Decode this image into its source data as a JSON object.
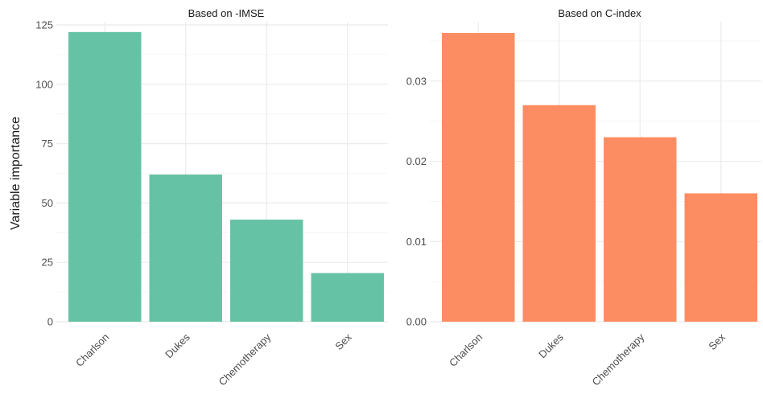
{
  "chart_data": [
    {
      "type": "bar",
      "title": "Based on -IMSE",
      "ylabel": "Variable importance",
      "xlabel": "",
      "categories": [
        "Charlson",
        "Dukes",
        "Chemotherapy",
        "Sex"
      ],
      "values": [
        122,
        62,
        43,
        20.5
      ],
      "ylim": [
        0,
        125
      ],
      "yticks": [
        0,
        25,
        50,
        75,
        100,
        125
      ],
      "ytick_labels": [
        "0",
        "25",
        "50",
        "75",
        "100",
        "125"
      ],
      "color": "#66C2A5",
      "grid": true
    },
    {
      "type": "bar",
      "title": "Based on C-index",
      "ylabel": "",
      "xlabel": "",
      "categories": [
        "Charlson",
        "Dukes",
        "Chemotherapy",
        "Sex"
      ],
      "values": [
        0.036,
        0.027,
        0.023,
        0.016
      ],
      "ylim": [
        0,
        0.037
      ],
      "yticks": [
        0,
        0.01,
        0.02,
        0.03
      ],
      "ytick_labels": [
        "0.00",
        "0.01",
        "0.02",
        "0.03"
      ],
      "color": "#FC8D62",
      "grid": true
    }
  ]
}
